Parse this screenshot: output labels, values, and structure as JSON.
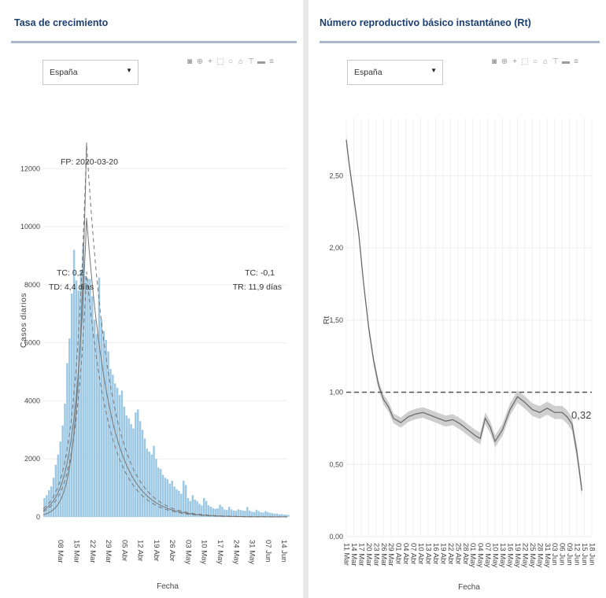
{
  "panels": {
    "left": {
      "title": "Tasa de crecimiento",
      "dropdown_value": "España"
    },
    "right": {
      "title": "Número reproductivo básico instantáneo (Rt)",
      "dropdown_value": "España"
    }
  },
  "toolbar_icons": [
    "camera-icon",
    "zoom-icon",
    "pan-icon",
    "box-select-icon",
    "lasso-icon",
    "home-icon",
    "spike-lines-icon",
    "hover-closest-icon",
    "hover-compare-icon"
  ],
  "colors": {
    "title": "#1b3f73",
    "bars": "#9cc8e4",
    "fit_line": "#777777",
    "ci_band": "#bbbbbb",
    "threshold": "#555555"
  },
  "chart_data": [
    {
      "type": "bar",
      "xlabel": "Fecha",
      "ylabel": "Casos diarios",
      "yticks": [
        0,
        2000,
        4000,
        6000,
        8000,
        10000,
        12000
      ],
      "ylim": [
        0,
        13200
      ],
      "x_start": "2020-03-01",
      "x_end": "2020-06-16",
      "xtick_labels": [
        "08 Mar",
        "15 Mar",
        "22 Mar",
        "29 Mar",
        "05 Abr",
        "12 Abr",
        "19 Abr",
        "26 Abr",
        "03 May",
        "10 May",
        "17 May",
        "24 May",
        "31 May",
        "07 Jun",
        "14 Jun"
      ],
      "values": [
        650,
        750,
        920,
        1050,
        1350,
        1800,
        2150,
        2600,
        3150,
        3900,
        5300,
        6150,
        7700,
        9200,
        8150,
        7800,
        8500,
        9400,
        8300,
        8200,
        8200,
        7600,
        6800,
        6300,
        8250,
        6800,
        6400,
        6100,
        5700,
        5100,
        4900,
        4600,
        4450,
        4200,
        4350,
        3800,
        3500,
        3400,
        3200,
        3050,
        3600,
        3700,
        3300,
        3000,
        2700,
        2350,
        2250,
        2150,
        2450,
        2000,
        1700,
        1650,
        1450,
        1350,
        1300,
        1150,
        1250,
        1050,
        950,
        900,
        800,
        1250,
        1100,
        650,
        550,
        750,
        600,
        550,
        450,
        400,
        650,
        550,
        400,
        350,
        300,
        280,
        300,
        420,
        350,
        260,
        240,
        350,
        260,
        220,
        210,
        260,
        240,
        220,
        210,
        340,
        220,
        180,
        170,
        250,
        200,
        160,
        150,
        200,
        170,
        140,
        130,
        110,
        120,
        90,
        100,
        80,
        80,
        70
      ],
      "annotations": [
        {
          "text": "FP: 2020-03-20"
        },
        {
          "text": "TC: 0,2"
        },
        {
          "text": "TD: 4,4 días"
        },
        {
          "text": "TC: -0,1"
        },
        {
          "text": "TR: 11,9 días"
        }
      ],
      "series": [
        {
          "name": "",
          "kind": "exponential_growth_fit",
          "tc": 0.2,
          "x_range": [
            "2020-03-01",
            "2020-03-20"
          ]
        },
        {
          "name": "",
          "kind": "exponential_decay_fit",
          "tc": -0.1,
          "x_range": [
            "2020-03-20",
            "2020-06-16"
          ]
        }
      ],
      "grid": true
    },
    {
      "type": "line",
      "xlabel": "Fecha",
      "ylabel": "Rt",
      "yticks": [
        0,
        0.5,
        1.0,
        1.5,
        2.0,
        2.5
      ],
      "ytick_labels": [
        "0,00",
        "0,50",
        "1,00",
        "1,50",
        "2,00",
        "2,50"
      ],
      "ylim": [
        0,
        2.9
      ],
      "x_start": "2020-03-11",
      "x_end": "2020-06-18",
      "xtick_labels": [
        "11 Mar",
        "14 Mar",
        "17 Mar",
        "20 Mar",
        "23 Mar",
        "26 Mar",
        "29 Mar",
        "01 Abr",
        "04 Abr",
        "07 Abr",
        "10 Abr",
        "13 Abr",
        "16 Abr",
        "19 Abr",
        "22 Abr",
        "25 Abr",
        "28 Abr",
        "01 May",
        "04 May",
        "07 May",
        "10 May",
        "13 May",
        "16 May",
        "19 May",
        "22 May",
        "25 May",
        "28 May",
        "31 May",
        "03 Jun",
        "06 Jun",
        "09 Jun",
        "12 Jun",
        "15 Jun",
        "18 Jun"
      ],
      "points": [
        [
          "2020-03-11",
          2.75
        ],
        [
          "2020-03-12",
          2.6
        ],
        [
          "2020-03-14",
          2.35
        ],
        [
          "2020-03-16",
          2.1
        ],
        [
          "2020-03-18",
          1.75
        ],
        [
          "2020-03-20",
          1.45
        ],
        [
          "2020-03-22",
          1.22
        ],
        [
          "2020-03-24",
          1.05
        ],
        [
          "2020-03-26",
          0.95
        ],
        [
          "2020-03-28",
          0.9
        ],
        [
          "2020-03-30",
          0.82
        ],
        [
          "2020-04-02",
          0.79
        ],
        [
          "2020-04-05",
          0.83
        ],
        [
          "2020-04-08",
          0.85
        ],
        [
          "2020-04-11",
          0.86
        ],
        [
          "2020-04-14",
          0.84
        ],
        [
          "2020-04-17",
          0.82
        ],
        [
          "2020-04-20",
          0.8
        ],
        [
          "2020-04-23",
          0.81
        ],
        [
          "2020-04-26",
          0.78
        ],
        [
          "2020-04-29",
          0.74
        ],
        [
          "2020-05-02",
          0.7
        ],
        [
          "2020-05-04",
          0.68
        ],
        [
          "2020-05-06",
          0.82
        ],
        [
          "2020-05-08",
          0.76
        ],
        [
          "2020-05-10",
          0.66
        ],
        [
          "2020-05-13",
          0.74
        ],
        [
          "2020-05-16",
          0.88
        ],
        [
          "2020-05-19",
          0.97
        ],
        [
          "2020-05-22",
          0.93
        ],
        [
          "2020-05-25",
          0.88
        ],
        [
          "2020-05-28",
          0.86
        ],
        [
          "2020-05-31",
          0.89
        ],
        [
          "2020-06-03",
          0.86
        ],
        [
          "2020-06-06",
          0.86
        ],
        [
          "2020-06-08",
          0.83
        ],
        [
          "2020-06-10",
          0.78
        ],
        [
          "2020-06-12",
          0.58
        ],
        [
          "2020-06-14",
          0.32
        ]
      ],
      "ci_halfwidth": 0.03,
      "threshold": 1.0,
      "end_label": "0,32",
      "grid": true
    }
  ]
}
